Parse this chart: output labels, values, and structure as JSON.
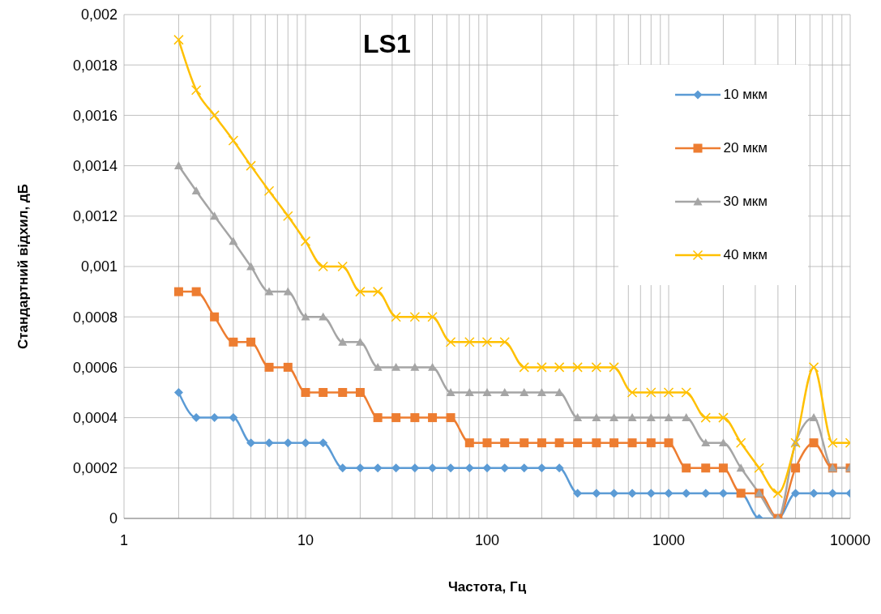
{
  "chart_data": {
    "type": "line",
    "title": "LS1",
    "xlabel": "Частота, Гц",
    "ylabel": "Стандартний відхил, дБ",
    "log": "x",
    "x": [
      2,
      2.5,
      3.15,
      4,
      5,
      6.3,
      8,
      10,
      12.5,
      16,
      20,
      25,
      31.5,
      40,
      50,
      63,
      80,
      100,
      125,
      160,
      200,
      250,
      315,
      400,
      500,
      630,
      800,
      1000,
      1250,
      1600,
      2000,
      2500,
      3150,
      4000,
      5000,
      6300,
      8000,
      10000
    ],
    "series": [
      {
        "name": "10 мкм",
        "color": "#5b9bd5",
        "marker": "diamond",
        "values": [
          0.0005,
          0.0004,
          0.0004,
          0.0004,
          0.0003,
          0.0003,
          0.0003,
          0.0003,
          0.0003,
          0.0002,
          0.0002,
          0.0002,
          0.0002,
          0.0002,
          0.0002,
          0.0002,
          0.0002,
          0.0002,
          0.0002,
          0.0002,
          0.0002,
          0.0002,
          0.0001,
          0.0001,
          0.0001,
          0.0001,
          0.0001,
          0.0001,
          0.0001,
          0.0001,
          0.0001,
          0.0001,
          0,
          0,
          0.0001,
          0.0001,
          0.0001,
          0.0001
        ]
      },
      {
        "name": "20 мкм",
        "color": "#ed7d31",
        "marker": "square",
        "values": [
          0.0009,
          0.0009,
          0.0008,
          0.0007,
          0.0007,
          0.0006,
          0.0006,
          0.0005,
          0.0005,
          0.0005,
          0.0005,
          0.0004,
          0.0004,
          0.0004,
          0.0004,
          0.0004,
          0.0003,
          0.0003,
          0.0003,
          0.0003,
          0.0003,
          0.0003,
          0.0003,
          0.0003,
          0.0003,
          0.0003,
          0.0003,
          0.0003,
          0.0002,
          0.0002,
          0.0002,
          0.0001,
          0.0001,
          0,
          0.0002,
          0.0003,
          0.0002,
          0.0002
        ]
      },
      {
        "name": "30 мкм",
        "color": "#a5a5a5",
        "marker": "triangle",
        "values": [
          0.0014,
          0.0013,
          0.0012,
          0.0011,
          0.001,
          0.0009,
          0.0009,
          0.0008,
          0.0008,
          0.0007,
          0.0007,
          0.0006,
          0.0006,
          0.0006,
          0.0006,
          0.0005,
          0.0005,
          0.0005,
          0.0005,
          0.0005,
          0.0005,
          0.0005,
          0.0004,
          0.0004,
          0.0004,
          0.0004,
          0.0004,
          0.0004,
          0.0004,
          0.0003,
          0.0003,
          0.0002,
          0.0001,
          0,
          0.0003,
          0.0004,
          0.0002,
          0.0002
        ]
      },
      {
        "name": "40 мкм",
        "color": "#ffc000",
        "marker": "cross",
        "values": [
          0.0019,
          0.0017,
          0.0016,
          0.0015,
          0.0014,
          0.0013,
          0.0012,
          0.0011,
          0.001,
          0.001,
          0.0009,
          0.0009,
          0.0008,
          0.0008,
          0.0008,
          0.0007,
          0.0007,
          0.0007,
          0.0007,
          0.0006,
          0.0006,
          0.0006,
          0.0006,
          0.0006,
          0.0006,
          0.0005,
          0.0005,
          0.0005,
          0.0005,
          0.0004,
          0.0004,
          0.0003,
          0.0002,
          0.0001,
          0.0003,
          0.0006,
          0.0003,
          0.0003
        ]
      }
    ],
    "xlim": [
      1,
      10000
    ],
    "xticks": [
      1,
      {
        "value": 2,
        "label": null
      },
      {
        "value": 3,
        "label": null
      },
      {
        "value": 4,
        "label": null
      },
      {
        "value": 5,
        "label": null
      },
      {
        "value": 6,
        "label": null
      },
      {
        "value": 7,
        "label": null
      },
      {
        "value": 8,
        "label": null
      },
      {
        "value": 9,
        "label": null
      },
      10,
      {
        "value": 20,
        "label": null
      },
      {
        "value": 30,
        "label": null
      },
      {
        "value": 40,
        "label": null
      },
      {
        "value": 50,
        "label": null
      },
      {
        "value": 60,
        "label": null
      },
      {
        "value": 70,
        "label": null
      },
      {
        "value": 80,
        "label": null
      },
      {
        "value": 90,
        "label": null
      },
      100,
      {
        "value": 200,
        "label": null
      },
      {
        "value": 300,
        "label": null
      },
      {
        "value": 400,
        "label": null
      },
      {
        "value": 500,
        "label": null
      },
      {
        "value": 600,
        "label": null
      },
      {
        "value": 700,
        "label": null
      },
      {
        "value": 800,
        "label": null
      },
      {
        "value": 900,
        "label": null
      },
      1000,
      {
        "value": 2000,
        "label": null
      },
      {
        "value": 3000,
        "label": null
      },
      {
        "value": 4000,
        "label": null
      },
      {
        "value": 5000,
        "label": null
      },
      {
        "value": 6000,
        "label": null
      },
      {
        "value": 7000,
        "label": null
      },
      {
        "value": 8000,
        "label": null
      },
      {
        "value": 9000,
        "label": null
      },
      10000
    ],
    "ylim": [
      0,
      0.002
    ],
    "yticks": [
      0,
      {
        "value": 0.0002,
        "label": "0,0002"
      },
      {
        "value": 0.0004,
        "label": "0,0004"
      },
      {
        "value": 0.0006,
        "label": "0,0006"
      },
      {
        "value": 0.0008,
        "label": "0,0008"
      },
      {
        "value": 0.001,
        "label": "0,001"
      },
      {
        "value": 0.0012,
        "label": "0,0012"
      },
      {
        "value": 0.0014,
        "label": "0,0014"
      },
      {
        "value": 0.0016,
        "label": "0,0016"
      },
      {
        "value": 0.0018,
        "label": "0,0018"
      },
      {
        "value": 0.002,
        "label": "0,002"
      }
    ],
    "grid": true,
    "legend": "top right",
    "line_style": "solid"
  }
}
